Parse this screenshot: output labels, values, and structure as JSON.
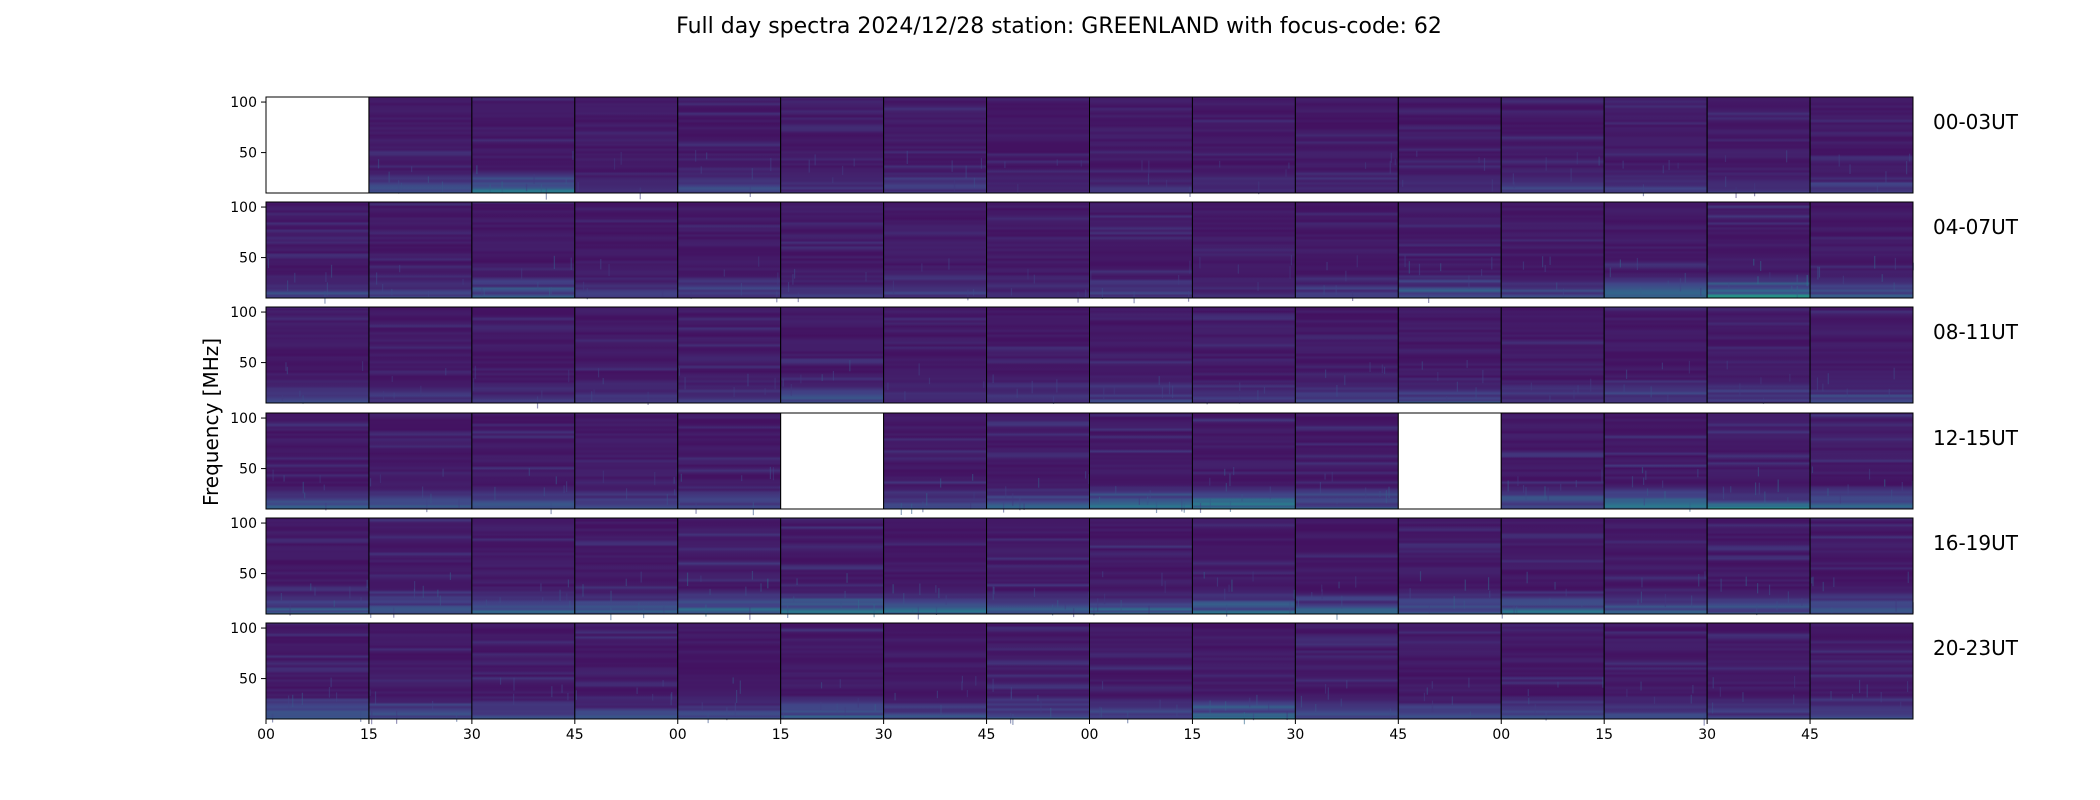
{
  "chart_data": {
    "type": "heatmap",
    "title": "Full day spectra 2024/12/28 station: GREENLAND with focus-code: 62",
    "ylabel": "Frequency [MHz]",
    "yticks": [
      50,
      100
    ],
    "ylim": [
      10,
      105
    ],
    "xticks": [
      "00",
      "15",
      "30",
      "45",
      "00",
      "15",
      "30",
      "45",
      "00",
      "15",
      "30",
      "45",
      "00",
      "15",
      "30",
      "45"
    ],
    "colormap": "viridis",
    "colors": {
      "background": "#44105a",
      "low": "#440154",
      "mid": "#21918c",
      "high": "#5ec962",
      "empty": "#ffffff"
    },
    "rows": [
      {
        "label": "00-03UT",
        "missing_panels": [
          0
        ],
        "activity": [
          0,
          0.35,
          0.55,
          0.1,
          0.3,
          0.15,
          0.25,
          0.1,
          0.15,
          0.1,
          0.1,
          0.15,
          0.3,
          0.2,
          0.2,
          0.25
        ]
      },
      {
        "label": "04-07UT",
        "missing_panels": [],
        "activity": [
          0.35,
          0.3,
          0.45,
          0.2,
          0.25,
          0.2,
          0.2,
          0.15,
          0.25,
          0.15,
          0.25,
          0.45,
          0.3,
          0.5,
          0.8,
          0.45
        ]
      },
      {
        "label": "08-11UT",
        "missing_panels": [],
        "activity": [
          0.3,
          0.15,
          0.15,
          0.2,
          0.25,
          0.35,
          0.15,
          0.2,
          0.3,
          0.2,
          0.25,
          0.35,
          0.2,
          0.3,
          0.2,
          0.25
        ]
      },
      {
        "label": "12-15UT",
        "missing_panels": [
          5,
          11
        ],
        "activity": [
          0.4,
          0.35,
          0.4,
          0.35,
          0.45,
          0,
          0.5,
          0.5,
          0.6,
          0.65,
          0.5,
          0,
          0.55,
          0.7,
          0.6,
          0.6
        ]
      },
      {
        "label": "16-19UT",
        "missing_panels": [],
        "activity": [
          0.45,
          0.5,
          0.45,
          0.45,
          0.6,
          0.6,
          0.55,
          0.5,
          0.45,
          0.55,
          0.5,
          0.5,
          0.45,
          0.45,
          0.45,
          0.5
        ]
      },
      {
        "label": "20-23UT",
        "missing_panels": [],
        "activity": [
          0.45,
          0.35,
          0.3,
          0.3,
          0.4,
          0.45,
          0.35,
          0.45,
          0.3,
          0.55,
          0.35,
          0.35,
          0.3,
          0.3,
          0.3,
          0.35
        ]
      }
    ]
  }
}
